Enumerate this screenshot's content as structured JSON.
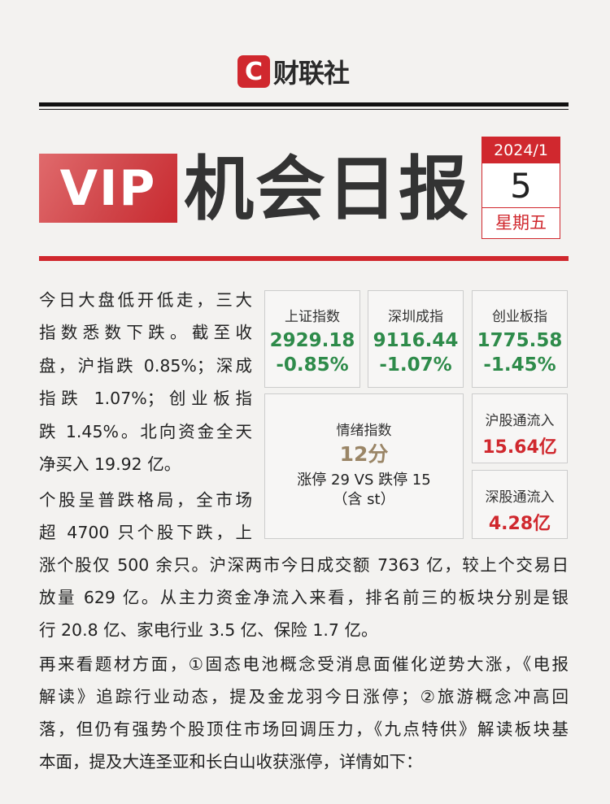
{
  "brand": {
    "logo_letter": "C",
    "logo_text": "财联社"
  },
  "header": {
    "vip": "VIP",
    "title": "机会日报",
    "date_year_month": "2024/1",
    "date_day": "5",
    "weekday": "星期五"
  },
  "indices": [
    {
      "name": "上证指数",
      "value": "2929.18",
      "change": "-0.85%"
    },
    {
      "name": "深圳成指",
      "value": "9116.44",
      "change": "-1.07%"
    },
    {
      "name": "创业板指",
      "value": "1775.58",
      "change": "-1.45%"
    }
  ],
  "sentiment": {
    "label": "情绪指数",
    "score": "12分",
    "limits": "涨停 29 VS 跌停 15",
    "note": "（含 st）"
  },
  "flows": [
    {
      "name": "沪股通流入",
      "value": "15.64亿"
    },
    {
      "name": "深股通流入",
      "value": "4.28亿"
    }
  ],
  "colors": {
    "accent": "#d0282e",
    "down": "#2e8b4a",
    "score": "#9a8566"
  },
  "body": {
    "p1": [
      "今日大盘低开低走，三大",
      "指数悉数下跌。截至收",
      "盘，沪指跌 0.85%；深成",
      "指跌 1.07%；创业板指",
      "跌 1.45%。北向资金全天",
      "净买入 19.92 亿。"
    ],
    "p2": [
      "个股呈普跌格局，全市场",
      "超 4700 只个股下跌，上",
      "涨个股仅 500 余只。沪深两市今日成交额 7363 亿，较上个交易日",
      "放量 629 亿。从主力资金净流入来看，排名前三的板块分别是银",
      "行 20.8 亿、家电行业 3.5 亿、保险 1.7 亿。"
    ],
    "p3": [
      "再来看题材方面，①固态电池概念受消息面催化逆势大涨，《电报",
      "解读》追踪行业动态，提及金龙羽今日涨停；②旅游概念冲高回",
      "落，但仍有强势个股顶住市场回调压力，《九点特供》解读板块基",
      "本面，提及大连圣亚和长白山收获涨停，详情如下："
    ]
  }
}
